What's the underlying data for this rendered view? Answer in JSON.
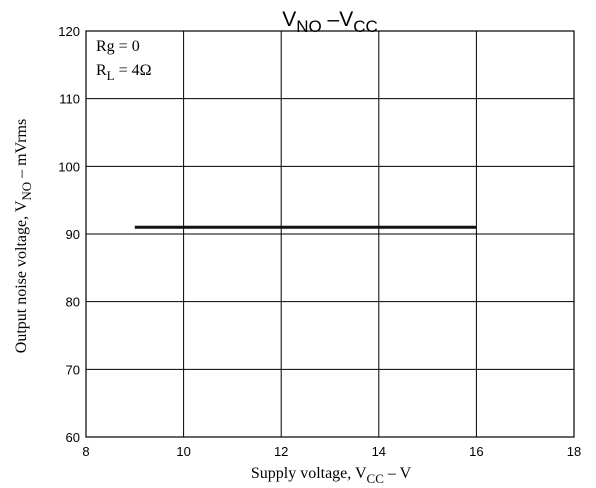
{
  "chart_data": {
    "type": "line",
    "title_main": "V",
    "title_main_sub": "NO",
    "title_sep": " –V",
    "title_sep_sub": "CC",
    "xlabel_main": "Supply voltage, V",
    "xlabel_sub": "CC",
    "xlabel_tail": " – V",
    "ylabel_main": "Output noise voltage, V",
    "ylabel_sub": "NO",
    "ylabel_tail": " – mVrms",
    "xlim": [
      8,
      18
    ],
    "ylim": [
      60,
      120
    ],
    "xticks": [
      "8",
      "10",
      "12",
      "14",
      "16",
      "18"
    ],
    "yticks": [
      "60",
      "70",
      "80",
      "90",
      "100",
      "110",
      "120"
    ],
    "grid": true,
    "annotations": {
      "rg": "Rg = 0",
      "rl_main": "R",
      "rl_sub": "L",
      "rl_tail": " = 4Ω"
    },
    "series": [
      {
        "x": [
          9,
          16
        ],
        "y": [
          91,
          91
        ]
      }
    ]
  }
}
